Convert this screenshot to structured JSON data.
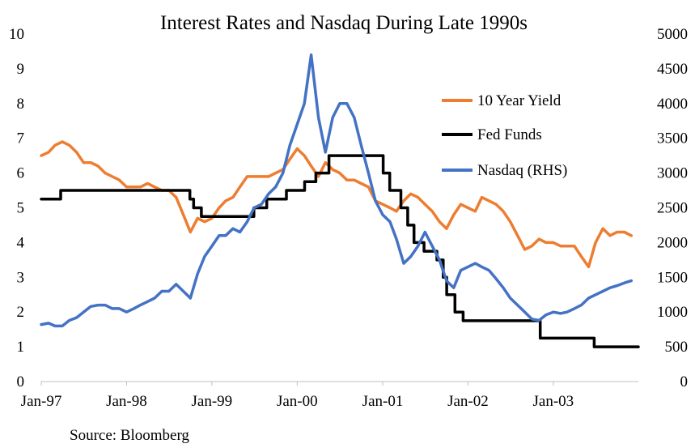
{
  "chart_data": {
    "type": "line",
    "title": "Interest Rates and Nasdaq During Late 1990s",
    "source": "Source: Bloomberg",
    "x_tick_labels": [
      "Jan-97",
      "Jan-98",
      "Jan-99",
      "Jan-00",
      "Jan-01",
      "Jan-02",
      "Jan-03"
    ],
    "x_range": [
      "1997-01",
      "2003-12"
    ],
    "y_left": {
      "ticks": [
        0,
        1,
        2,
        3,
        4,
        5,
        6,
        7,
        8,
        9,
        10
      ],
      "range": [
        0,
        10
      ]
    },
    "y_right": {
      "ticks": [
        0,
        500,
        1000,
        1500,
        2000,
        2500,
        3000,
        3500,
        4000,
        4500,
        5000
      ],
      "range": [
        0,
        5000
      ]
    },
    "grid": false,
    "legend_position": "right",
    "series": [
      {
        "name": "10 Year Yield",
        "axis": "left",
        "color": "#ED7D31",
        "points": [
          [
            "1997-01-01",
            6.5
          ],
          [
            "1997-02-01",
            6.6
          ],
          [
            "1997-03-01",
            6.8
          ],
          [
            "1997-04-01",
            6.9
          ],
          [
            "1997-05-01",
            6.8
          ],
          [
            "1997-06-01",
            6.6
          ],
          [
            "1997-07-01",
            6.3
          ],
          [
            "1997-08-01",
            6.3
          ],
          [
            "1997-09-01",
            6.2
          ],
          [
            "1997-10-01",
            6.0
          ],
          [
            "1997-11-01",
            5.9
          ],
          [
            "1997-12-01",
            5.8
          ],
          [
            "1998-01-01",
            5.6
          ],
          [
            "1998-02-01",
            5.6
          ],
          [
            "1998-03-01",
            5.6
          ],
          [
            "1998-04-01",
            5.7
          ],
          [
            "1998-05-01",
            5.6
          ],
          [
            "1998-06-01",
            5.5
          ],
          [
            "1998-07-01",
            5.5
          ],
          [
            "1998-08-01",
            5.3
          ],
          [
            "1998-09-01",
            4.8
          ],
          [
            "1998-10-01",
            4.3
          ],
          [
            "1998-11-01",
            4.7
          ],
          [
            "1998-12-01",
            4.6
          ],
          [
            "1999-01-01",
            4.7
          ],
          [
            "1999-02-01",
            5.0
          ],
          [
            "1999-03-01",
            5.2
          ],
          [
            "1999-04-01",
            5.3
          ],
          [
            "1999-05-01",
            5.6
          ],
          [
            "1999-06-01",
            5.9
          ],
          [
            "1999-07-01",
            5.9
          ],
          [
            "1999-08-01",
            5.9
          ],
          [
            "1999-09-01",
            5.9
          ],
          [
            "1999-10-01",
            6.0
          ],
          [
            "1999-11-01",
            6.1
          ],
          [
            "1999-12-01",
            6.4
          ],
          [
            "2000-01-01",
            6.7
          ],
          [
            "2000-02-01",
            6.5
          ],
          [
            "2000-03-01",
            6.2
          ],
          [
            "2000-04-01",
            5.9
          ],
          [
            "2000-05-01",
            6.3
          ],
          [
            "2000-06-01",
            6.1
          ],
          [
            "2000-07-01",
            6.0
          ],
          [
            "2000-08-01",
            5.8
          ],
          [
            "2000-09-01",
            5.8
          ],
          [
            "2000-10-01",
            5.7
          ],
          [
            "2000-11-01",
            5.6
          ],
          [
            "2000-12-01",
            5.2
          ],
          [
            "2001-01-01",
            5.1
          ],
          [
            "2001-02-01",
            5.0
          ],
          [
            "2001-03-01",
            4.9
          ],
          [
            "2001-04-01",
            5.2
          ],
          [
            "2001-05-01",
            5.4
          ],
          [
            "2001-06-01",
            5.3
          ],
          [
            "2001-07-01",
            5.1
          ],
          [
            "2001-08-01",
            4.9
          ],
          [
            "2001-09-01",
            4.6
          ],
          [
            "2001-10-01",
            4.4
          ],
          [
            "2001-11-01",
            4.8
          ],
          [
            "2001-12-01",
            5.1
          ],
          [
            "2002-01-01",
            5.0
          ],
          [
            "2002-02-01",
            4.9
          ],
          [
            "2002-03-01",
            5.3
          ],
          [
            "2002-04-01",
            5.2
          ],
          [
            "2002-05-01",
            5.1
          ],
          [
            "2002-06-01",
            4.9
          ],
          [
            "2002-07-01",
            4.6
          ],
          [
            "2002-08-01",
            4.2
          ],
          [
            "2002-09-01",
            3.8
          ],
          [
            "2002-10-01",
            3.9
          ],
          [
            "2002-11-01",
            4.1
          ],
          [
            "2002-12-01",
            4.0
          ],
          [
            "2003-01-01",
            4.0
          ],
          [
            "2003-02-01",
            3.9
          ],
          [
            "2003-03-01",
            3.9
          ],
          [
            "2003-04-01",
            3.9
          ],
          [
            "2003-05-01",
            3.6
          ],
          [
            "2003-06-01",
            3.3
          ],
          [
            "2003-07-01",
            4.0
          ],
          [
            "2003-08-01",
            4.4
          ],
          [
            "2003-09-01",
            4.2
          ],
          [
            "2003-10-01",
            4.3
          ],
          [
            "2003-11-01",
            4.3
          ],
          [
            "2003-12-01",
            4.2
          ]
        ]
      },
      {
        "name": "Fed Funds",
        "axis": "left",
        "color": "#000000",
        "step": true,
        "points": [
          [
            "1997-01-01",
            5.25
          ],
          [
            "1997-03-25",
            5.5
          ],
          [
            "1998-09-29",
            5.25
          ],
          [
            "1998-10-15",
            5.0
          ],
          [
            "1998-11-17",
            4.75
          ],
          [
            "1999-06-30",
            5.0
          ],
          [
            "1999-08-24",
            5.25
          ],
          [
            "1999-11-16",
            5.5
          ],
          [
            "2000-02-02",
            5.75
          ],
          [
            "2000-03-21",
            6.0
          ],
          [
            "2000-05-16",
            6.5
          ],
          [
            "2001-01-03",
            6.0
          ],
          [
            "2001-01-31",
            5.5
          ],
          [
            "2001-03-20",
            5.0
          ],
          [
            "2001-04-18",
            4.5
          ],
          [
            "2001-05-15",
            4.0
          ],
          [
            "2001-06-27",
            3.75
          ],
          [
            "2001-08-21",
            3.5
          ],
          [
            "2001-09-17",
            3.0
          ],
          [
            "2001-10-02",
            2.5
          ],
          [
            "2001-11-06",
            2.0
          ],
          [
            "2001-12-11",
            1.75
          ],
          [
            "2002-11-06",
            1.25
          ],
          [
            "2003-06-25",
            1.0
          ],
          [
            "2003-12-31",
            1.0
          ]
        ]
      },
      {
        "name": "Nasdaq (RHS)",
        "axis": "right",
        "color": "#4472C4",
        "points": [
          [
            "1997-01-01",
            820
          ],
          [
            "1997-02-01",
            840
          ],
          [
            "1997-03-01",
            800
          ],
          [
            "1997-04-01",
            800
          ],
          [
            "1997-05-01",
            880
          ],
          [
            "1997-06-01",
            920
          ],
          [
            "1997-07-01",
            1000
          ],
          [
            "1997-08-01",
            1080
          ],
          [
            "1997-09-01",
            1100
          ],
          [
            "1997-10-01",
            1100
          ],
          [
            "1997-11-01",
            1050
          ],
          [
            "1997-12-01",
            1050
          ],
          [
            "1998-01-01",
            1000
          ],
          [
            "1998-02-01",
            1050
          ],
          [
            "1998-03-01",
            1100
          ],
          [
            "1998-04-01",
            1150
          ],
          [
            "1998-05-01",
            1200
          ],
          [
            "1998-06-01",
            1300
          ],
          [
            "1998-07-01",
            1300
          ],
          [
            "1998-08-01",
            1400
          ],
          [
            "1998-09-01",
            1300
          ],
          [
            "1998-10-01",
            1200
          ],
          [
            "1998-11-01",
            1550
          ],
          [
            "1998-12-01",
            1800
          ],
          [
            "1999-01-01",
            1950
          ],
          [
            "1999-02-01",
            2100
          ],
          [
            "1999-03-01",
            2100
          ],
          [
            "1999-04-01",
            2200
          ],
          [
            "1999-05-01",
            2150
          ],
          [
            "1999-06-01",
            2300
          ],
          [
            "1999-07-01",
            2500
          ],
          [
            "1999-08-01",
            2550
          ],
          [
            "1999-09-01",
            2700
          ],
          [
            "1999-10-01",
            2800
          ],
          [
            "1999-11-01",
            3000
          ],
          [
            "1999-12-01",
            3400
          ],
          [
            "2000-01-01",
            3700
          ],
          [
            "2000-02-01",
            4000
          ],
          [
            "2000-03-01",
            4700
          ],
          [
            "2000-04-01",
            3800
          ],
          [
            "2000-05-01",
            3300
          ],
          [
            "2000-06-01",
            3800
          ],
          [
            "2000-07-01",
            4000
          ],
          [
            "2000-08-01",
            4000
          ],
          [
            "2000-09-01",
            3800
          ],
          [
            "2000-10-01",
            3400
          ],
          [
            "2000-11-01",
            3000
          ],
          [
            "2000-12-01",
            2600
          ],
          [
            "2001-01-01",
            2400
          ],
          [
            "2001-02-01",
            2300
          ],
          [
            "2001-03-01",
            2050
          ],
          [
            "2001-04-01",
            1700
          ],
          [
            "2001-05-01",
            1800
          ],
          [
            "2001-06-01",
            1950
          ],
          [
            "2001-07-01",
            2150
          ],
          [
            "2001-08-01",
            1950
          ],
          [
            "2001-09-01",
            1750
          ],
          [
            "2001-10-01",
            1450
          ],
          [
            "2001-11-01",
            1350
          ],
          [
            "2001-12-01",
            1600
          ],
          [
            "2002-01-01",
            1650
          ],
          [
            "2002-02-01",
            1700
          ],
          [
            "2002-03-01",
            1650
          ],
          [
            "2002-04-01",
            1600
          ],
          [
            "2002-05-01",
            1480
          ],
          [
            "2002-06-01",
            1350
          ],
          [
            "2002-07-01",
            1200
          ],
          [
            "2002-08-01",
            1100
          ],
          [
            "2002-09-01",
            1000
          ],
          [
            "2002-10-01",
            900
          ],
          [
            "2002-11-01",
            880
          ],
          [
            "2002-12-01",
            960
          ],
          [
            "2003-01-01",
            1000
          ],
          [
            "2003-02-01",
            980
          ],
          [
            "2003-03-01",
            1000
          ],
          [
            "2003-04-01",
            1050
          ],
          [
            "2003-05-01",
            1100
          ],
          [
            "2003-06-01",
            1200
          ],
          [
            "2003-07-01",
            1250
          ],
          [
            "2003-08-01",
            1300
          ],
          [
            "2003-09-01",
            1350
          ],
          [
            "2003-10-01",
            1380
          ],
          [
            "2003-11-01",
            1420
          ],
          [
            "2003-12-01",
            1450
          ]
        ]
      }
    ]
  }
}
